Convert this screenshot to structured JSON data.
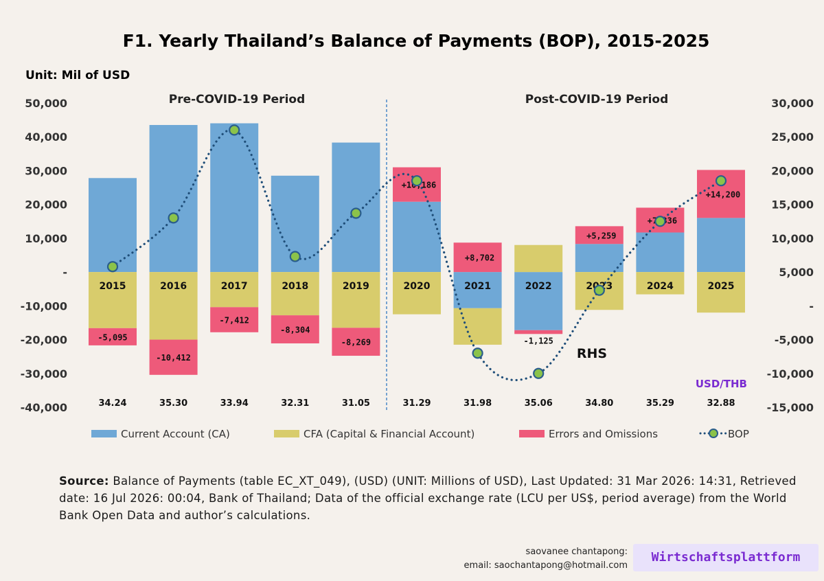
{
  "chart_data": {
    "type": "bar",
    "title": "F1. Yearly Thailand’s Balance of Payments (BOP), 2015-2025",
    "unit": "Unit: Mil of USD",
    "periods": [
      "Pre-COVID-19 Period",
      "Post-COVID-19 Period"
    ],
    "categories": [
      "2015",
      "2016",
      "2017",
      "2018",
      "2019",
      "2020",
      "2021",
      "2022",
      "2023",
      "2024",
      "2025"
    ],
    "left_axis": {
      "ticks": [
        "50,000",
        "40,000",
        "30,000",
        "20,000",
        "10,000",
        "-",
        "-10,000",
        "-20,000",
        "-30,000",
        "-40,000"
      ],
      "ylim": [
        -40000,
        50000
      ]
    },
    "right_axis": {
      "ticks": [
        "30,000",
        "25,000",
        "20,000",
        "15,000",
        "10,000",
        "5,000",
        "-",
        "-5,000",
        "-10,000",
        "-15,000"
      ],
      "ylim": [
        -15000,
        30000
      ]
    },
    "series": [
      {
        "name": "Current Account (CA)",
        "color": "#6fa8d6",
        "values": [
          27800,
          43500,
          44000,
          28500,
          38300,
          20800,
          -10700,
          -17200,
          8300,
          11700,
          16000
        ]
      },
      {
        "name": "CFA (Capital & Financial Account)",
        "color": "#d8cc6c",
        "values": [
          -16600,
          -20000,
          -10400,
          -12800,
          -16500,
          -12500,
          -10800,
          8000,
          -11200,
          -6600,
          -12000
        ]
      },
      {
        "name": "Errors and Omissions",
        "color": "#ee5a7a",
        "values": [
          -5095,
          -10412,
          -7412,
          -8304,
          -8269,
          10186,
          8702,
          -1125,
          5259,
          7336,
          14200
        ],
        "labels": [
          "-5,095",
          "-10,412",
          "-7,412",
          "-8,304",
          "-8,269",
          "+10,186",
          "+8,702",
          "-1,125",
          "+5,259",
          "+7,336",
          "+14,200"
        ]
      },
      {
        "name": "BOP",
        "axis": "right",
        "color": "#1f4e79",
        "marker_color": "#8bc34a",
        "values": [
          5800,
          13000,
          26000,
          7300,
          13700,
          18500,
          -7000,
          -10000,
          2300,
          12500,
          18500
        ]
      }
    ],
    "rhs_label": "RHS",
    "fx_label": "USD/THB",
    "fx_color": "#7a2bd1",
    "fx_values": [
      "34.24",
      "35.30",
      "33.94",
      "32.31",
      "31.05",
      "31.29",
      "31.98",
      "35.06",
      "34.80",
      "35.29",
      "32.88"
    ],
    "legend": [
      "Current Account (CA)",
      "CFA (Capital & Financial Account)",
      "Errors and Omissions",
      "BOP"
    ]
  },
  "source": {
    "label": "Source:",
    "text": " Balance of Payments (table EC_XT_049), (USD) (UNIT: Millions of USD), Last Updated:  31 Mar 2026: 14:31, Retrieved date: 16 Jul 2026: 00:04, Bank of Thailand; Data of the official exchange rate (LCU per US$, period average) from the World Bank Open Data and author’s calculations."
  },
  "author": {
    "name": "saovanee chantapong:",
    "email": "email: saochantapong@hotmail.com"
  },
  "brand": "Wirtschaftsplattform"
}
